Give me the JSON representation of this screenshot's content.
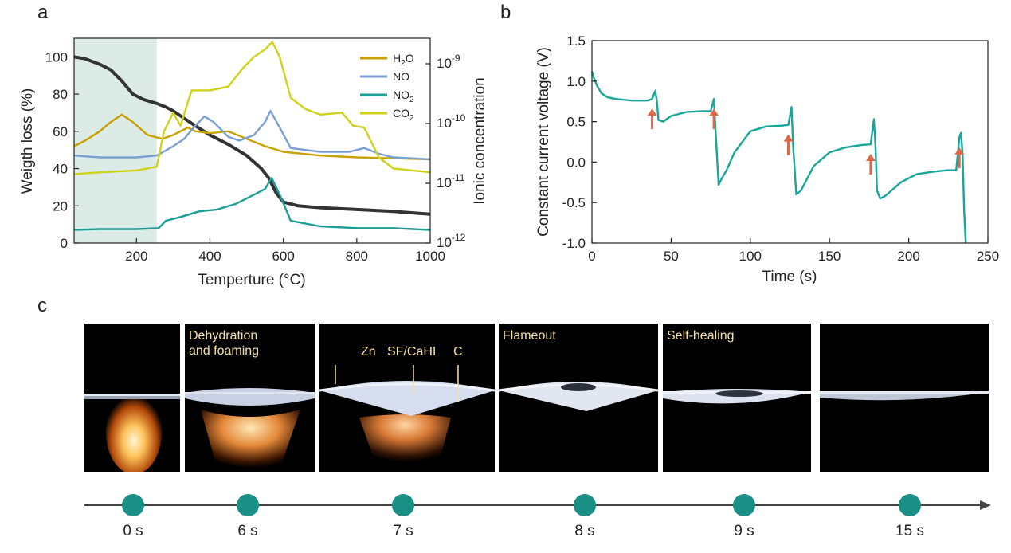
{
  "panel_labels": {
    "a": "a",
    "b": "b",
    "c": "c"
  },
  "chart_data": [
    {
      "type": "line",
      "panel": "a",
      "xlabel": "Temperture (°C)",
      "ylabel": "Weigth loss (%)",
      "y2label": "Ionic concentration",
      "xlim": [
        30,
        1000
      ],
      "ylim": [
        0,
        110
      ],
      "y2_scale": "log",
      "xticks": [
        "200",
        "400",
        "600",
        "800",
        "1000"
      ],
      "yticks": [
        "0",
        "20",
        "40",
        "60",
        "80",
        "100"
      ],
      "y2ticks": [
        {
          "base": "10",
          "exp": "-12"
        },
        {
          "base": "10",
          "exp": "-11"
        },
        {
          "base": "10",
          "exp": "-10"
        },
        {
          "base": "10",
          "exp": "-9"
        }
      ],
      "shaded_region": [
        30,
        255
      ],
      "shade_color": "#dcebe6",
      "legend_position": "top-right",
      "series": [
        {
          "name": "weight",
          "color": "#333333",
          "x": [
            30,
            60,
            100,
            130,
            160,
            190,
            220,
            255,
            280,
            300,
            330,
            360,
            400,
            450,
            500,
            540,
            560,
            580,
            600,
            640,
            700,
            800,
            900,
            1000
          ],
          "y": [
            100,
            99,
            96,
            93,
            87,
            80,
            77,
            75,
            73,
            71,
            67,
            63,
            58,
            53,
            47,
            40,
            35,
            27,
            22,
            20,
            19,
            18,
            17,
            15.5
          ]
        },
        {
          "name": "H2O",
          "label_main": "H",
          "label_sub": "2",
          "label_tail": "O",
          "color": "#c8a000",
          "x": [
            30,
            60,
            100,
            130,
            160,
            190,
            230,
            270,
            300,
            340,
            360,
            400,
            450,
            500,
            550,
            600,
            700,
            800,
            900,
            1000
          ],
          "y": [
            52,
            55,
            60,
            65,
            69,
            65,
            58,
            56,
            58,
            62,
            60,
            59,
            60,
            56,
            52,
            49,
            47,
            46,
            45.5,
            45
          ]
        },
        {
          "name": "NO",
          "label_main": "NO",
          "label_sub": "",
          "label_tail": "",
          "color": "#7a9fd0",
          "x": [
            30,
            100,
            200,
            255,
            300,
            330,
            360,
            385,
            410,
            450,
            480,
            520,
            550,
            565,
            590,
            620,
            700,
            780,
            820,
            860,
            900,
            1000
          ],
          "y": [
            47,
            46,
            46,
            47,
            52,
            56,
            63,
            68,
            65,
            57,
            55,
            58,
            65,
            71,
            62,
            51,
            49,
            49,
            51,
            48,
            46,
            45
          ]
        },
        {
          "name": "NO2",
          "label_main": "NO",
          "label_sub": "2",
          "label_tail": "",
          "color": "#1a9e95",
          "x": [
            30,
            100,
            200,
            260,
            280,
            320,
            370,
            420,
            470,
            520,
            550,
            568,
            590,
            620,
            700,
            800,
            900,
            1000
          ],
          "y": [
            7,
            7.5,
            7.5,
            8,
            12,
            14,
            17,
            18,
            21,
            26,
            29,
            35,
            26,
            12,
            9,
            8,
            8,
            7
          ]
        },
        {
          "name": "CO2",
          "label_main": "CO",
          "label_sub": "2",
          "label_tail": "",
          "color": "#cfd21a",
          "x": [
            30,
            100,
            200,
            255,
            275,
            300,
            320,
            350,
            400,
            450,
            490,
            520,
            550,
            570,
            590,
            620,
            660,
            700,
            760,
            790,
            820,
            860,
            900,
            1000
          ],
          "y": [
            37,
            38,
            39,
            41,
            60,
            70,
            63,
            82,
            82,
            84,
            94,
            100,
            104,
            108,
            100,
            78,
            72,
            69,
            70,
            63,
            62,
            46,
            40,
            38
          ]
        }
      ]
    },
    {
      "type": "line",
      "panel": "b",
      "xlabel": "Time (s)",
      "ylabel": "Constant current voltage (V)",
      "xlim": [
        0,
        250
      ],
      "ylim": [
        -1.0,
        1.5
      ],
      "xticks": [
        "0",
        "50",
        "100",
        "150",
        "200",
        "250"
      ],
      "yticks": [
        "-1.0",
        "-0.5",
        "0.0",
        "0.5",
        "1.0",
        "1.5"
      ],
      "series": [
        {
          "name": "voltage",
          "color": "#1aa59a",
          "x": [
            0,
            1,
            3,
            6,
            10,
            15,
            20,
            25,
            30,
            35,
            38,
            40,
            41,
            42,
            45,
            50,
            60,
            70,
            75,
            77,
            78,
            80,
            82,
            85,
            90,
            100,
            110,
            120,
            124,
            126,
            127,
            129,
            132,
            140,
            150,
            160,
            170,
            176,
            178,
            179,
            180,
            182,
            185,
            195,
            205,
            215,
            225,
            230,
            232,
            233,
            234,
            235,
            236
          ],
          "y": [
            1.12,
            1.05,
            0.95,
            0.85,
            0.8,
            0.78,
            0.77,
            0.76,
            0.76,
            0.76,
            0.78,
            0.88,
            0.75,
            0.52,
            0.5,
            0.57,
            0.62,
            0.63,
            0.63,
            0.78,
            0.4,
            -0.28,
            -0.2,
            -0.1,
            0.12,
            0.38,
            0.44,
            0.45,
            0.46,
            0.68,
            0.2,
            -0.4,
            -0.35,
            -0.05,
            0.12,
            0.18,
            0.21,
            0.22,
            0.53,
            0.2,
            -0.35,
            -0.45,
            -0.42,
            -0.25,
            -0.15,
            -0.12,
            -0.1,
            -0.1,
            0.3,
            0.36,
            0.1,
            -0.6,
            -1.0
          ]
        }
      ],
      "arrow_times": [
        38,
        77,
        124,
        176,
        232
      ],
      "arrow_color": "#e0684a"
    }
  ],
  "photos": [
    {
      "label_line1": "",
      "label_line2": ""
    },
    {
      "label_line1": "Dehydration",
      "label_line2": "and foaming"
    },
    {
      "label_line1": "",
      "label_line2": "",
      "markers": [
        "Zn",
        "SF/CaHI",
        "C"
      ]
    },
    {
      "label_line1": "Flameout",
      "label_line2": ""
    },
    {
      "label_line1": "Self-healing",
      "label_line2": ""
    },
    {
      "label_line1": "",
      "label_line2": ""
    }
  ],
  "timeline": {
    "color": "#1a8f86",
    "points": [
      "0 s",
      "6 s",
      "7 s",
      "8 s",
      "9 s",
      "15 s"
    ]
  }
}
